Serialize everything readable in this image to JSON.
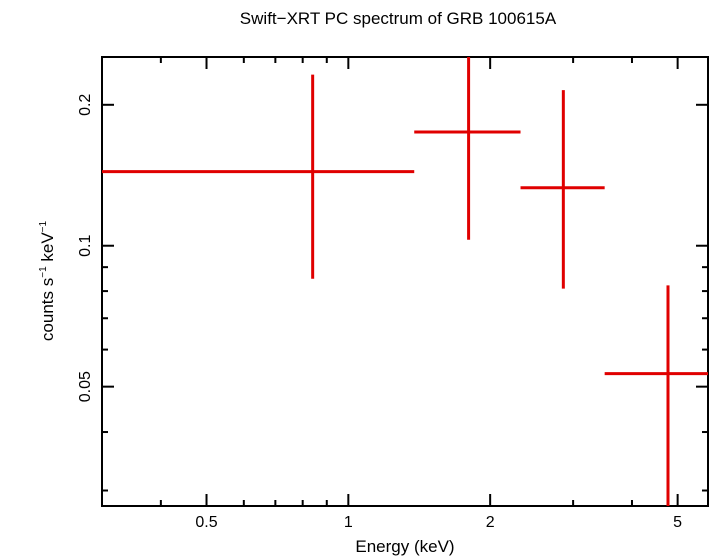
{
  "chart_data": {
    "type": "scatter",
    "title": "Swift−XRT PC spectrum of GRB 100615A",
    "xlabel": "Energy (keV)",
    "ylabel_main": "counts s",
    "ylabel_sup1": "−1",
    "ylabel_mid": " keV",
    "ylabel_sup2": "−1",
    "x_scale": "log",
    "y_scale": "log",
    "xlim": [
      0.3,
      5.8
    ],
    "ylim": [
      0.0278,
      0.253
    ],
    "x_major_ticks": [
      {
        "value": 0.5,
        "label": "0.5"
      },
      {
        "value": 1,
        "label": "1"
      },
      {
        "value": 2,
        "label": "2"
      },
      {
        "value": 5,
        "label": "5"
      }
    ],
    "x_minor_ticks": [
      0.4,
      0.6,
      0.7,
      0.8,
      0.9,
      3,
      4
    ],
    "y_major_ticks": [
      {
        "value": 0.05,
        "label": "0.05"
      },
      {
        "value": 0.1,
        "label": "0.1"
      },
      {
        "value": 0.2,
        "label": "0.2"
      }
    ],
    "y_minor_ticks": [
      0.03,
      0.04,
      0.06,
      0.07,
      0.08,
      0.09
    ],
    "series": [
      {
        "color": "#e00000",
        "points": [
          {
            "x": 0.84,
            "xlo": 0.3,
            "xhi": 1.38,
            "y": 0.144,
            "ylo": 0.085,
            "yhi": 0.232
          },
          {
            "x": 1.8,
            "xlo": 1.38,
            "xhi": 2.32,
            "y": 0.175,
            "ylo": 0.103,
            "yhi": 0.253
          },
          {
            "x": 2.86,
            "xlo": 2.32,
            "xhi": 3.5,
            "y": 0.133,
            "ylo": 0.081,
            "yhi": 0.215
          },
          {
            "x": 4.77,
            "xlo": 3.5,
            "xhi": 5.8,
            "y": 0.0533,
            "ylo": 0.0278,
            "yhi": 0.0823
          }
        ]
      }
    ]
  }
}
